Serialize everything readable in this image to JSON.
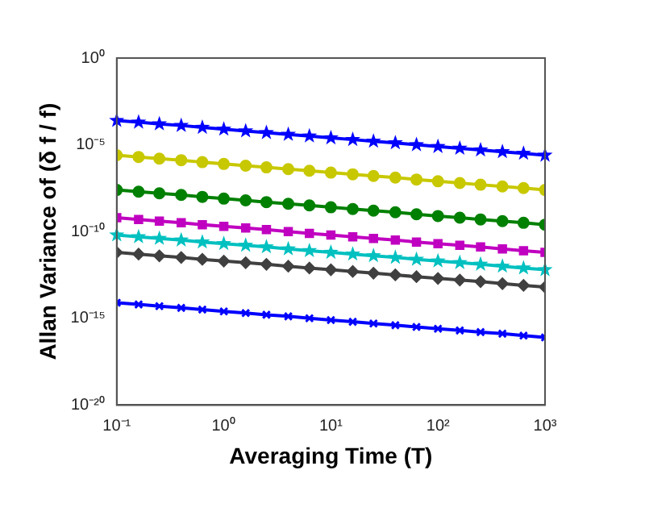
{
  "chart_data": {
    "type": "line",
    "xlabel": "Averaging Time (T)",
    "ylabel": "Allan Variance of (δ f / f)",
    "log": "xy",
    "grid": false,
    "legend": false,
    "line_style": "solid",
    "x": [
      0.1,
      0.16,
      0.25,
      0.4,
      0.63,
      1,
      1.6,
      2.5,
      4,
      6.3,
      10,
      16,
      25,
      40,
      63,
      100,
      160,
      250,
      400,
      630,
      1000
    ],
    "xlim": [
      0.1,
      1000
    ],
    "xticks": [
      {
        "value": 0.1,
        "label": "10⁻¹"
      },
      {
        "value": 1,
        "label": "10⁰"
      },
      {
        "value": 10,
        "label": "10¹"
      },
      {
        "value": 100,
        "label": "10²"
      },
      {
        "value": 1000,
        "label": "10³"
      }
    ],
    "ylim": [
      1e-20,
      1
    ],
    "yticks": [
      {
        "value": 1e-20,
        "label": "10⁻²⁰"
      },
      {
        "value": 1e-15,
        "label": "10⁻¹⁵"
      },
      {
        "value": 1e-10,
        "label": "10⁻¹⁰"
      },
      {
        "value": 1e-05,
        "label": "10⁻⁵"
      },
      {
        "value": 1,
        "label": "10⁰"
      }
    ],
    "series": [
      {
        "color": "#0000ff",
        "marker": "star",
        "values": [
          0.00025,
          0.0002,
          0.00016,
          0.00013,
          0.0001,
          7.9e-05,
          6.3e-05,
          5e-05,
          4e-05,
          3.2e-05,
          2.5e-05,
          2e-05,
          1.6e-05,
          1.3e-05,
          1e-05,
          7.9e-06,
          6.3e-06,
          5e-06,
          4e-06,
          3.2e-06,
          2.5e-06
        ]
      },
      {
        "color": "#c8c800",
        "marker": "circle",
        "values": [
          2.5e-06,
          2e-06,
          1.6e-06,
          1.3e-06,
          1e-06,
          7.9e-07,
          6.3e-07,
          5e-07,
          4e-07,
          3.2e-07,
          2.5e-07,
          2e-07,
          1.6e-07,
          1.3e-07,
          1e-07,
          7.9e-08,
          6.3e-08,
          5e-08,
          4e-08,
          3.2e-08,
          2.5e-08
        ]
      },
      {
        "color": "#008000",
        "marker": "circle",
        "values": [
          2.5e-08,
          2e-08,
          1.6e-08,
          1.3e-08,
          1e-08,
          7.9e-09,
          6.3e-09,
          5e-09,
          4e-09,
          3.2e-09,
          2.5e-09,
          2e-09,
          1.6e-09,
          1.3e-09,
          1e-09,
          7.9e-10,
          6.3e-10,
          5e-10,
          4e-10,
          3.2e-10,
          2.5e-10
        ]
      },
      {
        "color": "#c000c0",
        "marker": "square",
        "values": [
          6.3e-10,
          5e-10,
          4e-10,
          3.2e-10,
          2.5e-10,
          2e-10,
          1.6e-10,
          1.3e-10,
          1e-10,
          7.9e-11,
          6.3e-11,
          5e-11,
          4e-11,
          3.2e-11,
          2.5e-11,
          2e-11,
          1.6e-11,
          1.3e-11,
          1e-11,
          7.9e-12,
          6.3e-12
        ]
      },
      {
        "color": "#00c0c0",
        "marker": "star",
        "values": [
          6.3e-11,
          5e-11,
          4e-11,
          3.2e-11,
          2.5e-11,
          2e-11,
          1.6e-11,
          1.3e-11,
          1e-11,
          7.9e-12,
          6.3e-12,
          5e-12,
          4e-12,
          3.2e-12,
          2.5e-12,
          2e-12,
          1.6e-12,
          1.3e-12,
          1e-12,
          7.9e-13,
          6.3e-13
        ]
      },
      {
        "color": "#404040",
        "marker": "diamond",
        "values": [
          6.3e-12,
          5e-12,
          4e-12,
          3.2e-12,
          2.5e-12,
          2e-12,
          1.6e-12,
          1.3e-12,
          1e-12,
          7.9e-13,
          6.3e-13,
          5e-13,
          4e-13,
          3.2e-13,
          2.5e-13,
          2e-13,
          1.6e-13,
          1.3e-13,
          1e-13,
          7.9e-14,
          6.3e-14
        ]
      },
      {
        "color": "#0000ff",
        "marker": "cross",
        "values": [
          7.9e-15,
          6.3e-15,
          5e-15,
          4e-15,
          3.2e-15,
          2.5e-15,
          2e-15,
          1.6e-15,
          1.3e-15,
          1e-15,
          7.9e-16,
          6.3e-16,
          5e-16,
          4e-16,
          3.2e-16,
          2.5e-16,
          2e-16,
          1.6e-16,
          1.3e-16,
          1e-16,
          7.9e-17
        ]
      }
    ]
  }
}
